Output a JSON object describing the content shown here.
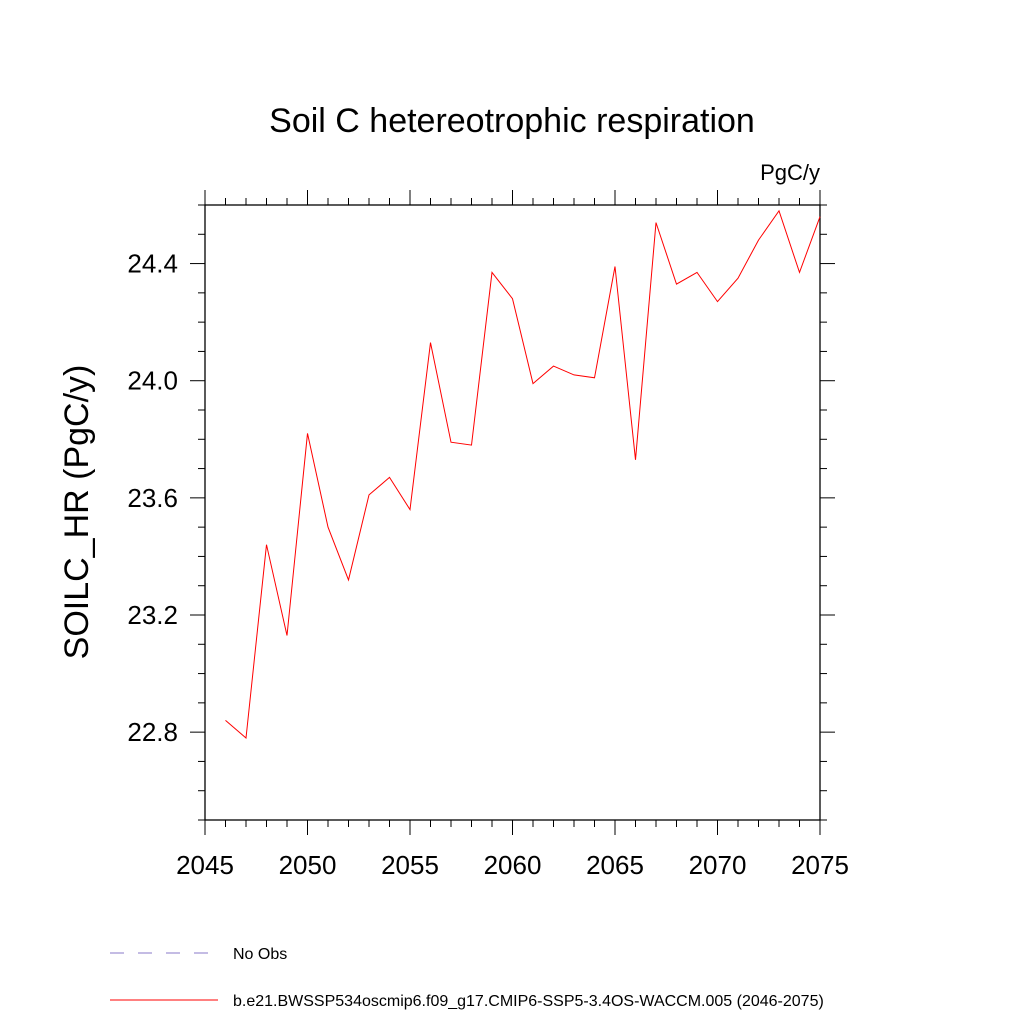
{
  "chart_data": {
    "type": "line",
    "title": "Soil C hetereotrophic respiration",
    "units": "PgC/y",
    "xlabel": "",
    "ylabel": "SOILC_HR  (PgC/y)",
    "xlim": [
      2045,
      2075
    ],
    "ylim": [
      22.5,
      24.6
    ],
    "xticks": [
      2045,
      2050,
      2055,
      2060,
      2065,
      2070,
      2075
    ],
    "xtick_labels": [
      "2045",
      "2050",
      "2055",
      "2060",
      "2065",
      "2070",
      "2075"
    ],
    "yticks": [
      22.8,
      23.2,
      23.6,
      24.0,
      24.4
    ],
    "ytick_labels": [
      "22.8",
      "23.2",
      "23.6",
      "24.0",
      "24.4"
    ],
    "grid": false,
    "series": [
      {
        "name": "b.e21.BWSSP534oscmip6.f09_g17.CMIP6-SSP5-3.4OS-WACCM.005 (2046-2075)",
        "color": "#ff0000",
        "line_style": "solid",
        "x": [
          2046,
          2047,
          2048,
          2049,
          2050,
          2051,
          2052,
          2053,
          2054,
          2055,
          2056,
          2057,
          2058,
          2059,
          2060,
          2061,
          2062,
          2063,
          2064,
          2065,
          2066,
          2067,
          2068,
          2069,
          2070,
          2071,
          2072,
          2073,
          2074,
          2075
        ],
        "values": [
          22.84,
          22.78,
          23.44,
          23.13,
          23.82,
          23.5,
          23.32,
          23.61,
          23.67,
          23.56,
          24.13,
          23.79,
          23.78,
          24.37,
          24.28,
          23.99,
          24.05,
          24.02,
          24.01,
          24.39,
          23.73,
          24.54,
          24.33,
          24.37,
          24.27,
          24.35,
          24.48,
          24.58,
          24.37,
          24.56
        ]
      }
    ],
    "legend": [
      {
        "label": "No Obs",
        "color": "#8878c8",
        "line_style": "dashed"
      },
      {
        "label": "b.e21.BWSSP534oscmip6.f09_g17.CMIP6-SSP5-3.4OS-WACCM.005 (2046-2075)",
        "color": "#ff0000",
        "line_style": "solid"
      }
    ],
    "legend_position": "bottom-left"
  }
}
